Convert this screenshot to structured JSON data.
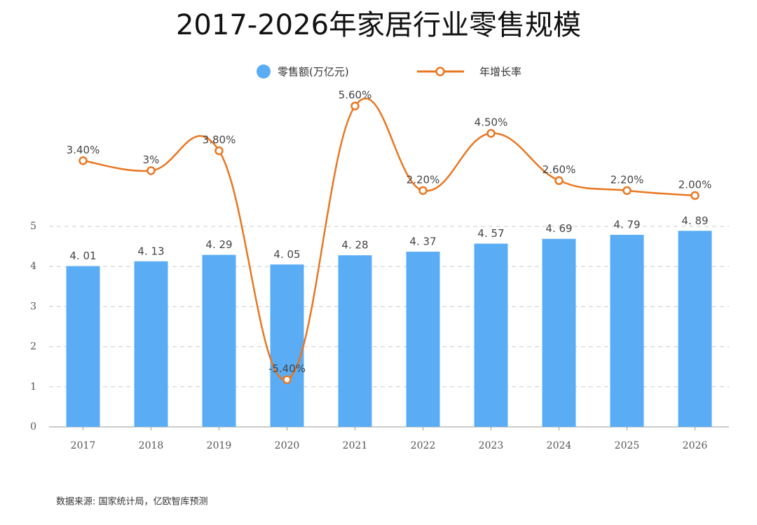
{
  "chart_data": {
    "type": "bar-line",
    "title": "2017-2026年家居行业零售规模",
    "categories": [
      "2017",
      "2018",
      "2019",
      "2020",
      "2021",
      "2022",
      "2023",
      "2024",
      "2025",
      "2026"
    ],
    "series": [
      {
        "name": "零售额(万亿元)",
        "type": "bar",
        "color": "#5aadf5",
        "values": [
          4.01,
          4.13,
          4.29,
          4.05,
          4.28,
          4.37,
          4.57,
          4.69,
          4.79,
          4.89
        ],
        "value_labels": [
          "4. 01",
          "4. 13",
          "4. 29",
          "4. 05",
          "4. 28",
          "4. 37",
          "4. 57",
          "4. 69",
          "4. 79",
          "4. 89"
        ]
      },
      {
        "name": "年增长率",
        "type": "line",
        "axis": "y2",
        "color": "#e87722",
        "values": [
          3.4,
          3,
          3.8,
          -5.4,
          5.6,
          2.2,
          4.5,
          2.6,
          2.2,
          2.0
        ],
        "value_labels": [
          "3.40%",
          "3%",
          "3.80%",
          "-5.40%",
          "5.60%",
          "2.20%",
          "4.50%",
          "2.60%",
          "2.20%",
          "2.00%"
        ]
      }
    ],
    "ylim": [
      0,
      8.5
    ],
    "yticks": [
      0,
      1,
      2,
      3,
      4,
      5
    ],
    "y2lim": [
      -7.3,
      6.4
    ],
    "grid": true,
    "source": "数据来源: 国家统计局，亿欧智库预测"
  }
}
